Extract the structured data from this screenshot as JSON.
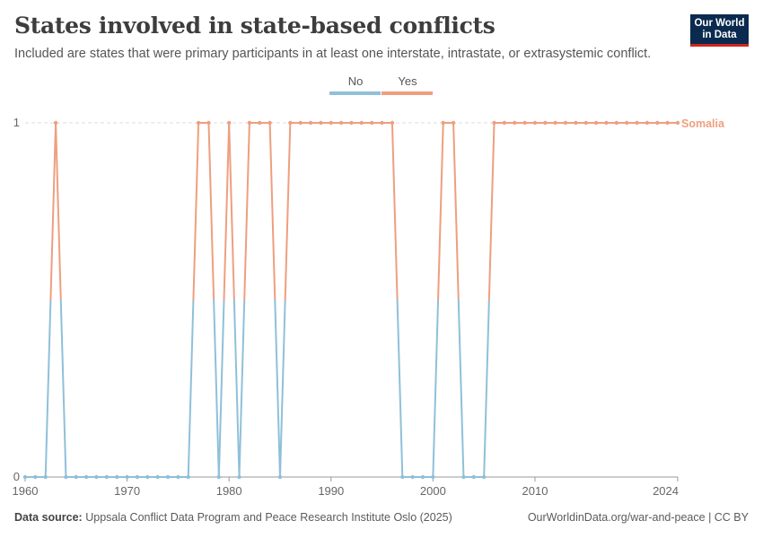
{
  "header": {
    "title": "States involved in state-based conflicts",
    "subtitle": "Included are states that were primary participants in at least one interstate, intrastate, or extrasystemic conflict.",
    "logo_line1": "Our World",
    "logo_line2": "in Data"
  },
  "footer": {
    "source_label": "Data source:",
    "source_text": "Uppsala Conflict Data Program and Peace Research Institute Oslo (2025)",
    "url_text": "OurWorldinData.org/war-and-peace | CC BY"
  },
  "colors": {
    "no": "#8fc0d9",
    "yes": "#ee9f7f",
    "grid": "#dddddd",
    "axis": "#999999",
    "tick_text": "#666666"
  },
  "chart_data": {
    "type": "line",
    "legend": [
      "No",
      "Yes"
    ],
    "legend_placement": "top-center",
    "series": [
      {
        "name": "Somalia",
        "x": [
          1960,
          1961,
          1962,
          1963,
          1964,
          1965,
          1966,
          1967,
          1968,
          1969,
          1970,
          1971,
          1972,
          1973,
          1974,
          1975,
          1976,
          1977,
          1978,
          1979,
          1980,
          1981,
          1982,
          1983,
          1984,
          1985,
          1986,
          1987,
          1988,
          1989,
          1990,
          1991,
          1992,
          1993,
          1994,
          1995,
          1996,
          1997,
          1998,
          1999,
          2000,
          2001,
          2002,
          2003,
          2004,
          2005,
          2006,
          2007,
          2008,
          2009,
          2010,
          2011,
          2012,
          2013,
          2014,
          2015,
          2016,
          2017,
          2018,
          2019,
          2020,
          2021,
          2022,
          2023,
          2024
        ],
        "values": [
          0,
          0,
          0,
          1,
          0,
          0,
          0,
          0,
          0,
          0,
          0,
          0,
          0,
          0,
          0,
          0,
          0,
          1,
          1,
          0,
          1,
          0,
          1,
          1,
          1,
          0,
          1,
          1,
          1,
          1,
          1,
          1,
          1,
          1,
          1,
          1,
          1,
          0,
          0,
          0,
          0,
          1,
          1,
          0,
          0,
          0,
          1,
          1,
          1,
          1,
          1,
          1,
          1,
          1,
          1,
          1,
          1,
          1,
          1,
          1,
          1,
          1,
          1,
          1,
          1
        ]
      }
    ],
    "x_ticks": [
      "1960",
      "1970",
      "1980",
      "1990",
      "2000",
      "2010",
      "2024"
    ],
    "y_ticks": [
      "0",
      "1"
    ],
    "xlim": [
      1960,
      2024
    ],
    "ylim": [
      0,
      1
    ],
    "grid": "horizontal dashed"
  }
}
